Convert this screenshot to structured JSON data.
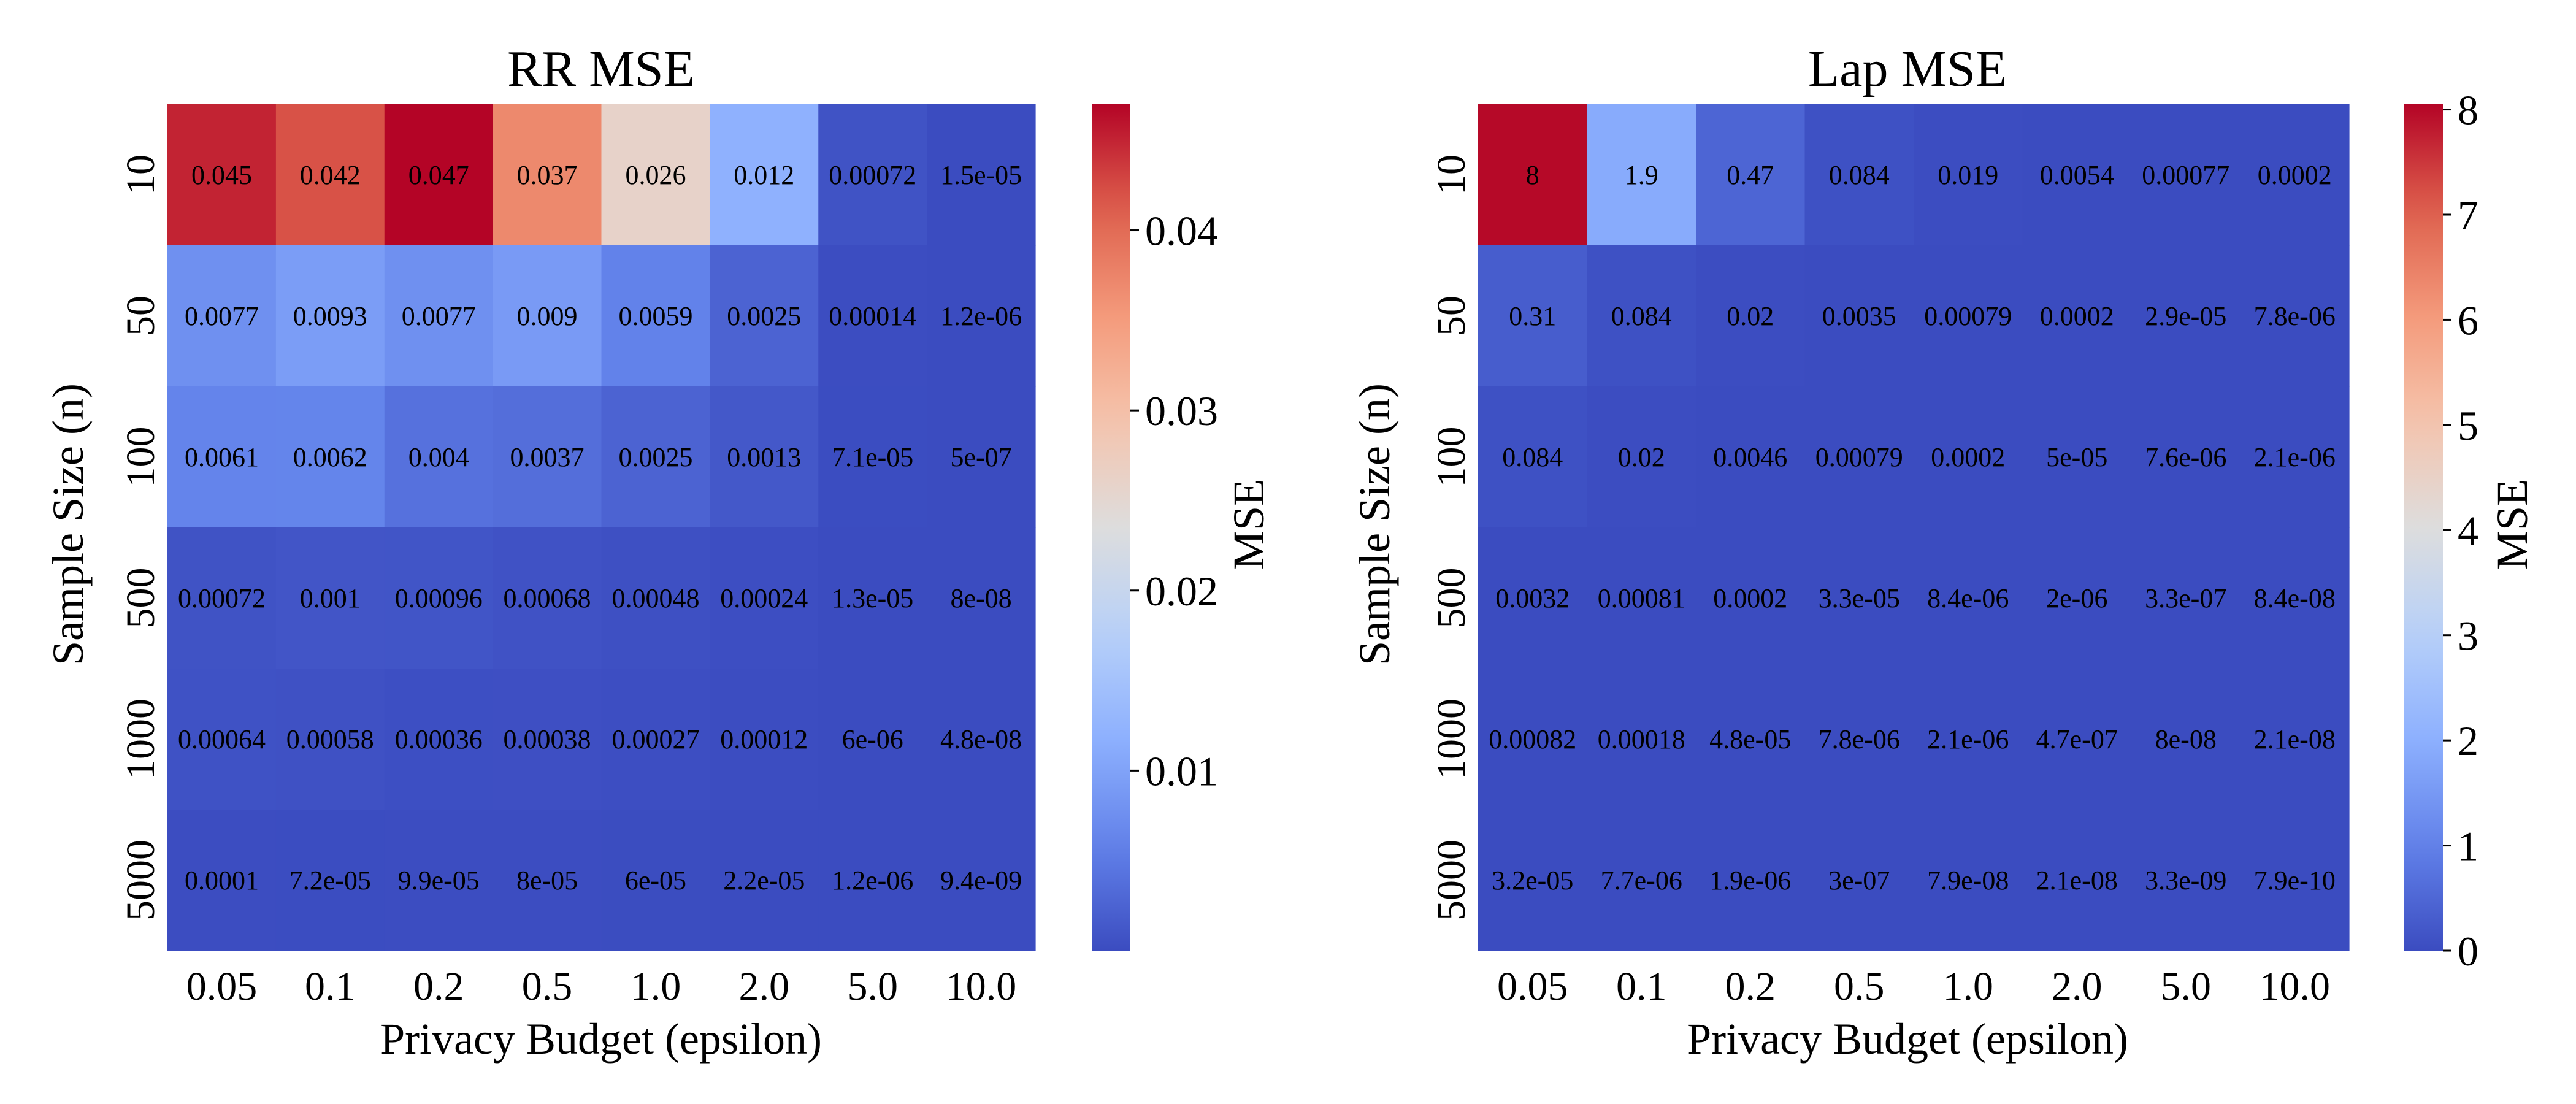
{
  "chart_data": [
    {
      "type": "heatmap",
      "title": "RR MSE",
      "xlabel": "Privacy Budget (epsilon)",
      "ylabel": "Sample Size (n)",
      "x_categories": [
        "0.05",
        "0.1",
        "0.2",
        "0.5",
        "1.0",
        "2.0",
        "5.0",
        "10.0"
      ],
      "y_categories": [
        "10",
        "50",
        "100",
        "500",
        "1000",
        "5000"
      ],
      "values": [
        [
          0.045,
          0.042,
          0.047,
          0.037,
          0.026,
          0.012,
          0.00072,
          1.5e-05
        ],
        [
          0.0077,
          0.0093,
          0.0077,
          0.009,
          0.0059,
          0.0025,
          0.00014,
          1.2e-06
        ],
        [
          0.0061,
          0.0062,
          0.004,
          0.0037,
          0.0025,
          0.0013,
          7.1e-05,
          5e-07
        ],
        [
          0.00072,
          0.001,
          0.00096,
          0.00068,
          0.00048,
          0.00024,
          1.3e-05,
          8e-08
        ],
        [
          0.00064,
          0.00058,
          0.00036,
          0.00038,
          0.00027,
          0.00012,
          6e-06,
          4.8e-08
        ],
        [
          0.0001,
          7.2e-05,
          9.9e-05,
          8e-05,
          6e-05,
          2.2e-05,
          1.2e-06,
          9.4e-09
        ]
      ],
      "annotations": [
        [
          "0.045",
          "0.042",
          "0.047",
          "0.037",
          "0.026",
          "0.012",
          "0.00072",
          "1.5e-05"
        ],
        [
          "0.0077",
          "0.0093",
          "0.0077",
          "0.009",
          "0.0059",
          "0.0025",
          "0.00014",
          "1.2e-06"
        ],
        [
          "0.0061",
          "0.0062",
          "0.004",
          "0.0037",
          "0.0025",
          "0.0013",
          "7.1e-05",
          "5e-07"
        ],
        [
          "0.00072",
          "0.001",
          "0.00096",
          "0.00068",
          "0.00048",
          "0.00024",
          "1.3e-05",
          "8e-08"
        ],
        [
          "0.00064",
          "0.00058",
          "0.00036",
          "0.00038",
          "0.00027",
          "0.00012",
          "6e-06",
          "4.8e-08"
        ],
        [
          "0.0001",
          "7.2e-05",
          "9.9e-05",
          "8e-05",
          "6e-05",
          "2.2e-05",
          "1.2e-06",
          "9.4e-09"
        ]
      ],
      "colorbar": {
        "label": "MSE",
        "colormap": "coolwarm",
        "range": [
          9.4e-09,
          0.047
        ],
        "ticks": [
          0.01,
          0.02,
          0.03,
          0.04
        ],
        "tick_labels": [
          "0.01",
          "0.02",
          "0.03",
          "0.04"
        ]
      }
    },
    {
      "type": "heatmap",
      "title": "Lap MSE",
      "xlabel": "Privacy Budget (epsilon)",
      "ylabel": "Sample Size (n)",
      "x_categories": [
        "0.05",
        "0.1",
        "0.2",
        "0.5",
        "1.0",
        "2.0",
        "5.0",
        "10.0"
      ],
      "y_categories": [
        "10",
        "50",
        "100",
        "500",
        "1000",
        "5000"
      ],
      "values": [
        [
          8,
          1.9,
          0.47,
          0.084,
          0.019,
          0.0054,
          0.00077,
          0.0002
        ],
        [
          0.31,
          0.084,
          0.02,
          0.0035,
          0.00079,
          0.0002,
          2.9e-05,
          7.8e-06
        ],
        [
          0.084,
          0.02,
          0.0046,
          0.00079,
          0.0002,
          5e-05,
          7.6e-06,
          2.1e-06
        ],
        [
          0.0032,
          0.00081,
          0.0002,
          3.3e-05,
          8.4e-06,
          2e-06,
          3.3e-07,
          8.4e-08
        ],
        [
          0.00082,
          0.00018,
          4.8e-05,
          7.8e-06,
          2.1e-06,
          4.7e-07,
          8e-08,
          2.1e-08
        ],
        [
          3.2e-05,
          7.7e-06,
          1.9e-06,
          3e-07,
          7.9e-08,
          2.1e-08,
          3.3e-09,
          7.9e-10
        ]
      ],
      "annotations": [
        [
          "8",
          "1.9",
          "0.47",
          "0.084",
          "0.019",
          "0.0054",
          "0.00077",
          "0.0002"
        ],
        [
          "0.31",
          "0.084",
          "0.02",
          "0.0035",
          "0.00079",
          "0.0002",
          "2.9e-05",
          "7.8e-06"
        ],
        [
          "0.084",
          "0.02",
          "0.0046",
          "0.00079",
          "0.0002",
          "5e-05",
          "7.6e-06",
          "2.1e-06"
        ],
        [
          "0.0032",
          "0.00081",
          "0.0002",
          "3.3e-05",
          "8.4e-06",
          "2e-06",
          "3.3e-07",
          "8.4e-08"
        ],
        [
          "0.00082",
          "0.00018",
          "4.8e-05",
          "7.8e-06",
          "2.1e-06",
          "4.7e-07",
          "8e-08",
          "2.1e-08"
        ],
        [
          "3.2e-05",
          "7.7e-06",
          "1.9e-06",
          "3e-07",
          "7.9e-08",
          "2.1e-08",
          "3.3e-09",
          "7.9e-10"
        ]
      ],
      "colorbar": {
        "label": "MSE",
        "colormap": "coolwarm",
        "range": [
          0,
          8.05
        ],
        "ticks": [
          0,
          1,
          2,
          3,
          4,
          5,
          6,
          7,
          8
        ],
        "tick_labels": [
          "0",
          "1",
          "2",
          "3",
          "4",
          "5",
          "6",
          "7",
          "8"
        ]
      }
    }
  ]
}
